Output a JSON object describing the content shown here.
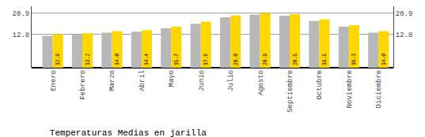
{
  "chart_data": {
    "type": "bar",
    "title": "Temperaturas Medias en jarilla",
    "categories": [
      "Enero",
      "Febrero",
      "Marzo",
      "Abril",
      "Mayo",
      "Junio",
      "Julio",
      "Agosto",
      "Septiembre",
      "Octubre",
      "Noviembre",
      "Diciembre"
    ],
    "series": [
      {
        "color": "#B8B8B8",
        "values": [
          12.2,
          12.6,
          13.4,
          13.8,
          15.1,
          16.8,
          19.3,
          20.3,
          19.9,
          17.9,
          15.7,
          13.4
        ]
      },
      {
        "color": "#FFD700",
        "values": [
          12.8,
          13.2,
          14.0,
          14.4,
          15.7,
          17.6,
          20.0,
          20.9,
          20.5,
          18.5,
          16.3,
          14.0
        ],
        "value_labels": [
          "12.8",
          "13.2",
          "14.0",
          "14.4",
          "15.7",
          "17.6",
          "20.0",
          "20.9",
          "20.5",
          "18.5",
          "16.3",
          "14.0"
        ],
        "data_labels": true
      }
    ],
    "ylim": [
      0,
      23.5
    ],
    "yticks": [
      12.8,
      20.9
    ],
    "y2lim": [
      0,
      23.5
    ],
    "y2ticks": [
      12.8,
      20.9
    ],
    "grid": true
  }
}
